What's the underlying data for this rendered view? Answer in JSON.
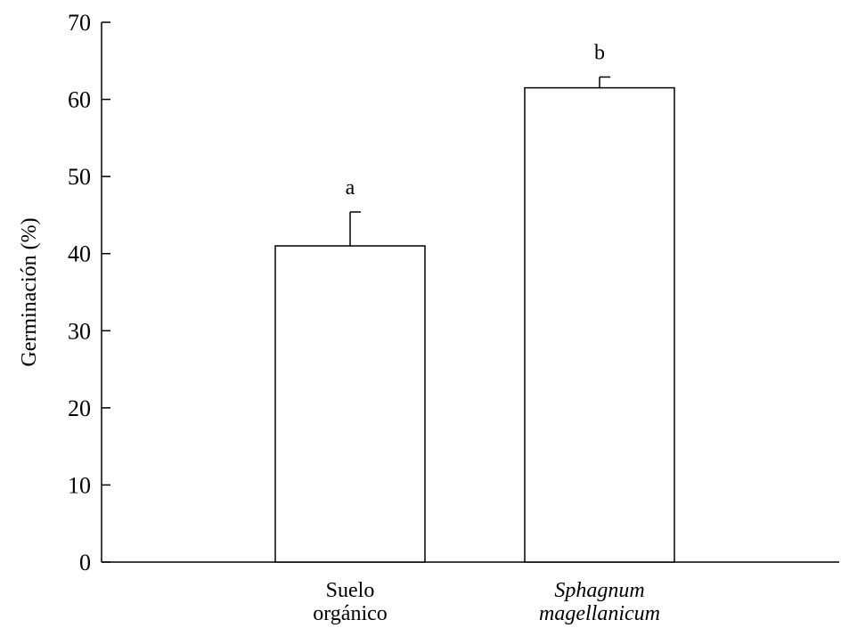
{
  "chart_data": {
    "type": "bar",
    "ylabel": "Germinación (%)",
    "xlabel": "",
    "ylim": [
      0,
      70
    ],
    "yticks": [
      0,
      10,
      20,
      30,
      40,
      50,
      60,
      70
    ],
    "grid": false,
    "categories": [
      {
        "lines": [
          "Suelo",
          "orgánico"
        ],
        "italic": false
      },
      {
        "lines": [
          "Sphagnum",
          "magellanicum"
        ],
        "italic": true
      }
    ],
    "values": [
      41,
      61.5
    ],
    "errors": [
      4.4,
      1.4
    ],
    "significance": [
      "a",
      "b"
    ]
  }
}
